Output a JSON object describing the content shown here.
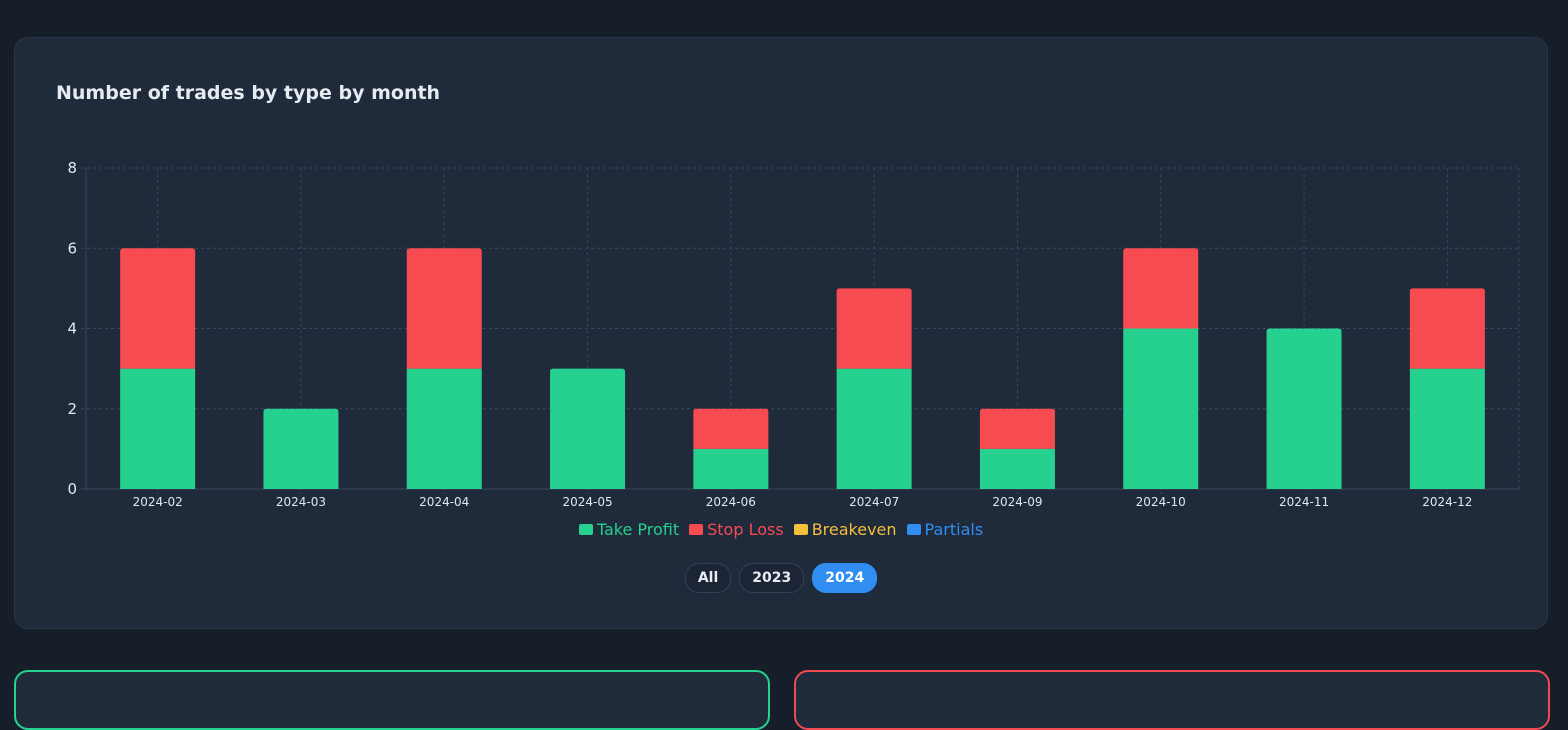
{
  "chart_card": {
    "title": "Number of trades by type by month"
  },
  "chart_data": {
    "type": "bar",
    "stacked": true,
    "title": "Number of trades by type by month",
    "xlabel": "",
    "ylabel": "",
    "ylim": [
      0,
      8
    ],
    "yticks": [
      0,
      2,
      4,
      6,
      8
    ],
    "grid": true,
    "legend_position": "bottom",
    "categories": [
      "2024-02",
      "2024-03",
      "2024-04",
      "2024-05",
      "2024-06",
      "2024-07",
      "2024-09",
      "2024-10",
      "2024-11",
      "2024-12"
    ],
    "series": [
      {
        "name": "Take Profit",
        "color": "#26d08f",
        "values": [
          3,
          2,
          3,
          3,
          1,
          3,
          1,
          4,
          4,
          3
        ]
      },
      {
        "name": "Stop Loss",
        "color": "#f64c51",
        "values": [
          3,
          0,
          3,
          0,
          1,
          2,
          1,
          2,
          0,
          2
        ]
      },
      {
        "name": "Breakeven",
        "color": "#f4bf3a",
        "values": [
          0,
          0,
          0,
          0,
          0,
          0,
          0,
          0,
          0,
          0
        ]
      },
      {
        "name": "Partials",
        "color": "#2f8ef0",
        "values": [
          0,
          0,
          0,
          0,
          0,
          0,
          0,
          0,
          0,
          0
        ]
      }
    ]
  },
  "filters": {
    "buttons": [
      {
        "label": "All",
        "active": false
      },
      {
        "label": "2023",
        "active": false
      },
      {
        "label": "2024",
        "active": true
      }
    ]
  },
  "colors": {
    "page_bg": "#161e2a",
    "card_bg": "#1f2a3b",
    "grid": "#3a475b",
    "tick_text": "#e2e7ee",
    "accent_blue": "#2f8ef0",
    "green_card_border": "#26d08f",
    "red_card_border": "#ef4b50"
  }
}
